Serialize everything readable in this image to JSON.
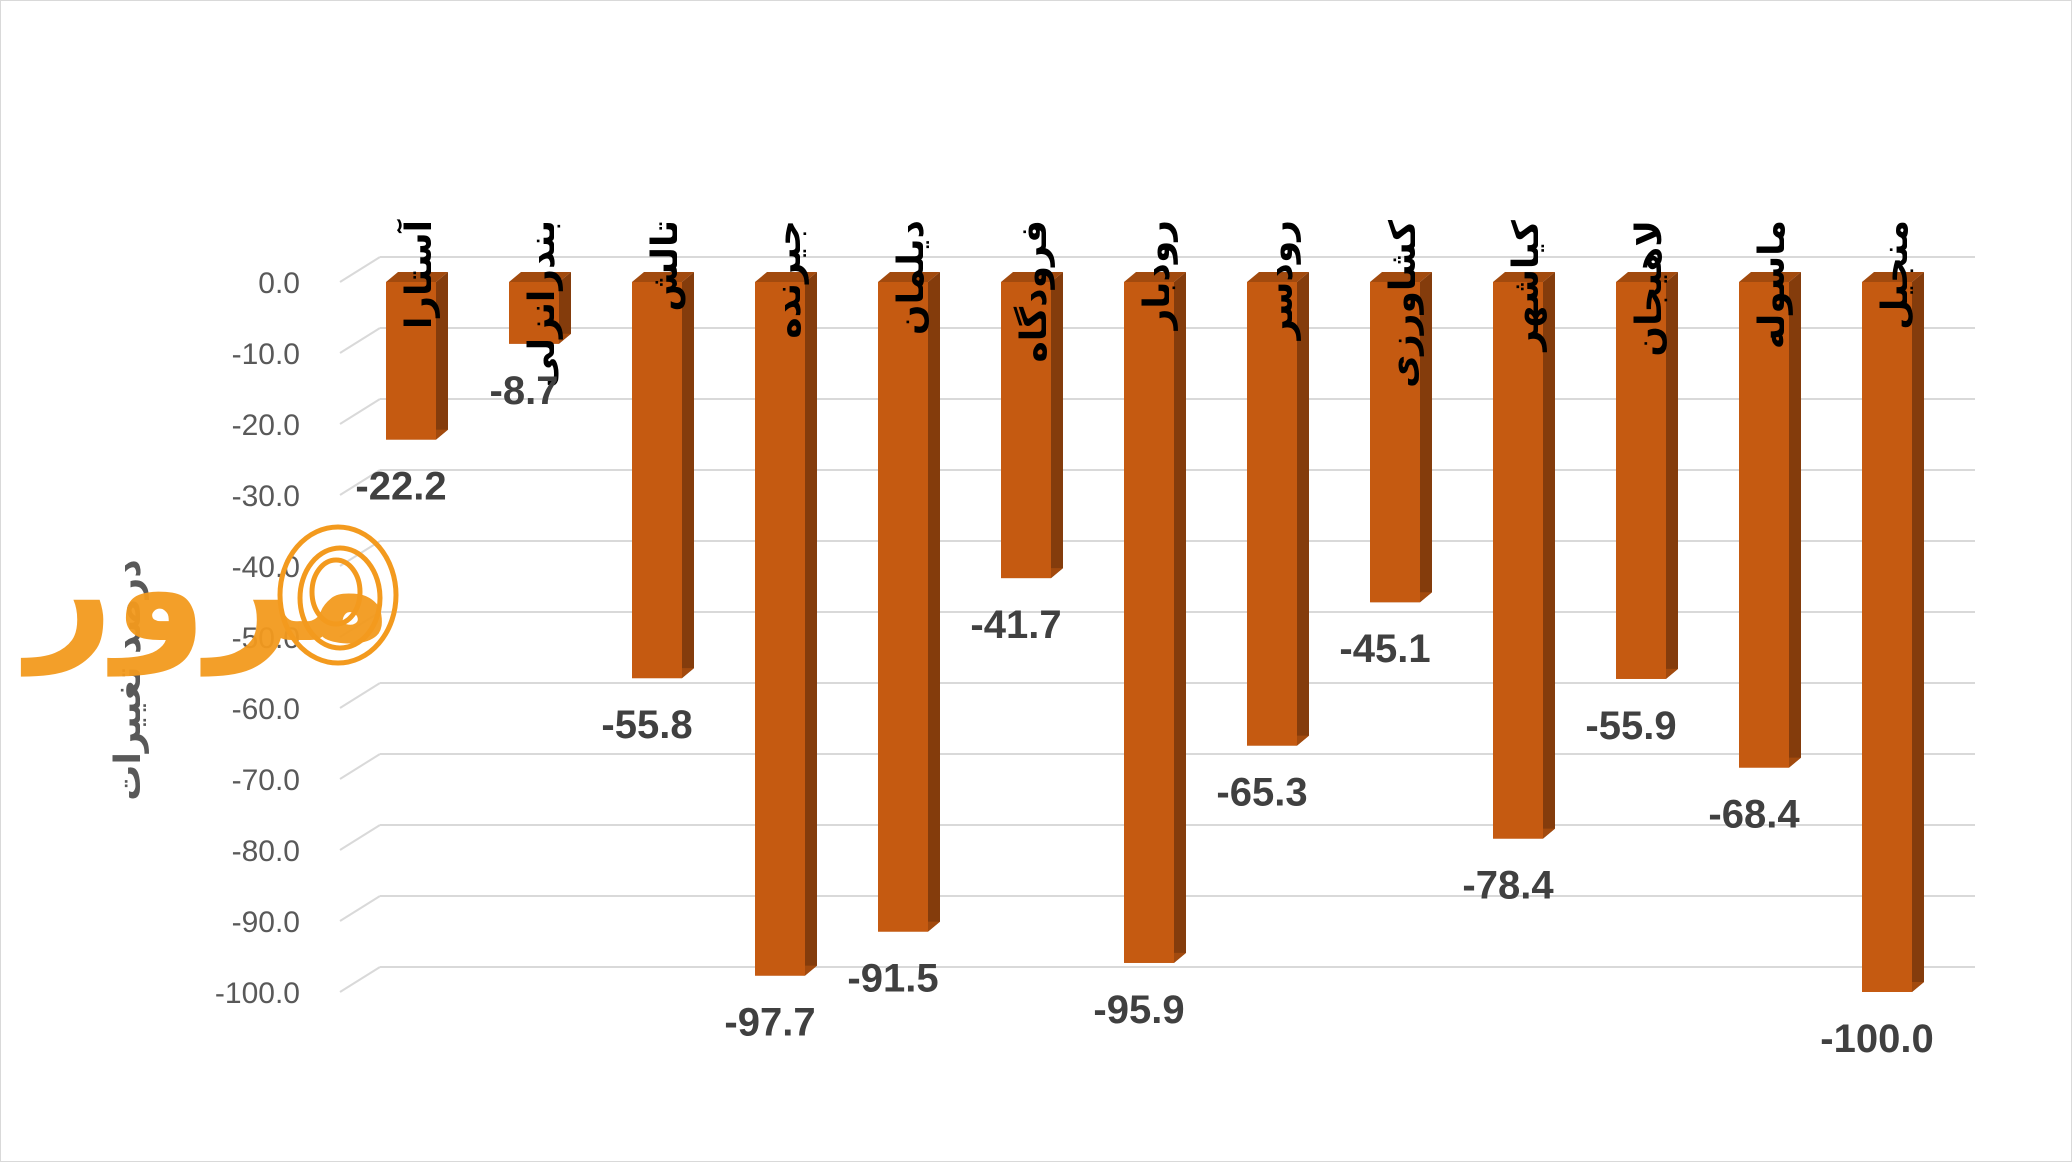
{
  "chart_data": {
    "type": "bar",
    "categories": [
      "آستارا",
      "بندرانزلی",
      "تالش",
      "جیرنده",
      "دیلمان",
      "فرودگاه",
      "رودبار",
      "رودسر",
      "کشاورزی",
      "کیاشهر",
      "لاهیجان",
      "ماسوله",
      "منجیل"
    ],
    "values": [
      -22.2,
      -8.7,
      -55.8,
      -97.7,
      -91.5,
      -41.7,
      -95.9,
      -65.3,
      -45.1,
      -78.4,
      -55.9,
      -68.4,
      -100.0
    ],
    "value_labels": [
      "-22.2",
      "-8.7",
      "-55.8",
      "-97.7",
      "-91.5",
      "-41.7",
      "-95.9",
      "-65.3",
      "-45.1",
      "-78.4",
      "-55.9",
      "-68.4",
      "-100.0"
    ],
    "ylabel": "درصد تغییرات",
    "ylim": [
      -100,
      0
    ],
    "yticks": [
      "0.0",
      "-10.0",
      "-20.0",
      "-30.0",
      "-40.0",
      "-50.0",
      "-60.0",
      "-70.0",
      "-80.0",
      "-90.0",
      "-100.0"
    ],
    "grid": true,
    "style": "3d-bar",
    "colors": {
      "bar_front": "#C55A11",
      "bar_side": "#843C0C",
      "bar_top": "#A24A0E",
      "grid": "#D9D9D9"
    }
  },
  "watermark": {
    "text": "مرور",
    "color": "#F39A1E"
  }
}
